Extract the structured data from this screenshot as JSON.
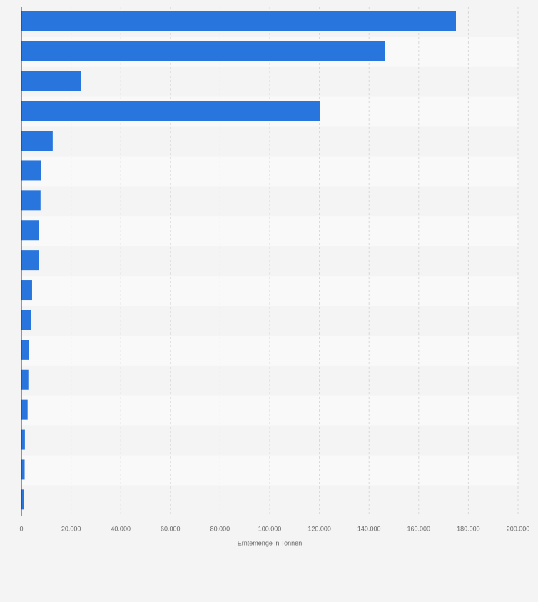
{
  "chart_data": {
    "type": "bar",
    "orientation": "horizontal",
    "title": "",
    "xlabel": "Erntemenge in Tonnen",
    "ylabel": "",
    "xlim": [
      0,
      200000
    ],
    "x_ticks": [
      0,
      20000,
      40000,
      60000,
      80000,
      100000,
      120000,
      140000,
      160000,
      180000,
      200000
    ],
    "x_tick_labels": [
      "0",
      "20.000",
      "40.000",
      "60.000",
      "80.000",
      "100.000",
      "120.000",
      "140.000",
      "160.000",
      "180.000",
      "200.000"
    ],
    "categories": [
      "",
      "",
      "",
      "",
      "",
      "",
      "",
      "",
      "",
      "",
      "",
      "",
      "",
      "",
      "",
      "",
      ""
    ],
    "values": [
      175000,
      146500,
      24000,
      120300,
      12600,
      8000,
      7700,
      7100,
      7000,
      4300,
      4000,
      3100,
      2800,
      2500,
      1400,
      1300,
      900
    ],
    "bar_color": "#2876dd",
    "grid": true,
    "legend": "none"
  }
}
